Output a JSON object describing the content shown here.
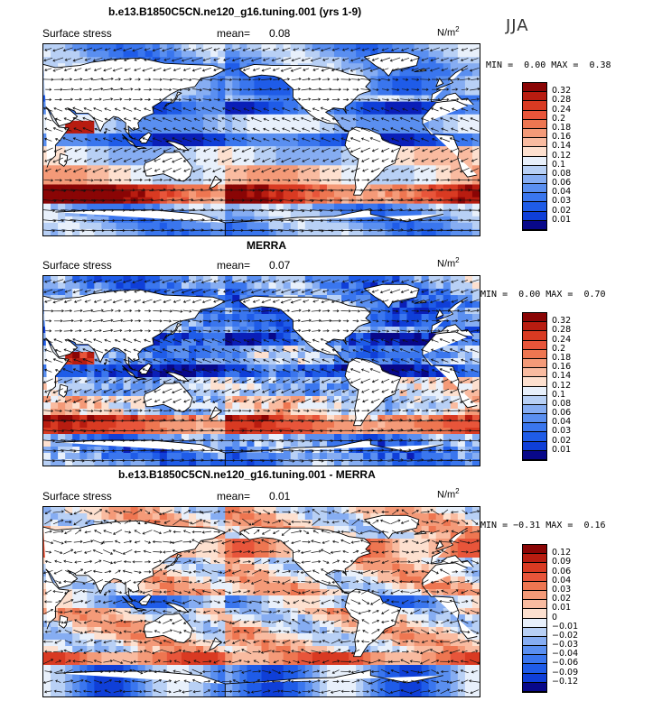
{
  "season": "JJA",
  "unit_base": "N/m",
  "unit_exp": "2",
  "colors": {
    "seq": [
      "#08088a",
      "#0a1fb8",
      "#0f3fd8",
      "#1f5ce8",
      "#3a76ee",
      "#5a8ff0",
      "#86adf2",
      "#b8d0f5",
      "#e8f0fb",
      "#fde0cf",
      "#f9bba0",
      "#f49a78",
      "#ee7651",
      "#e8553a",
      "#d93a22",
      "#b81c10",
      "#8a0505"
    ],
    "land": "#ffffff",
    "arrow": "#111111"
  },
  "panels": [
    {
      "title": "b.e13.B1850C5CN.ne120_g16.tuning.001 (yrs 1-9)",
      "variable": "Surface stress",
      "mean_label": "mean=",
      "mean": "0.08",
      "min_label": "MIN =",
      "min": "0.00",
      "max_label": "MAX =",
      "max": "0.38",
      "levels": [
        "0.32",
        "0.28",
        "0.24",
        "0.2",
        "0.18",
        "0.16",
        "0.14",
        "0.12",
        "0.1",
        "0.08",
        "0.06",
        "0.04",
        "0.03",
        "0.02",
        "0.01"
      ],
      "kind": "model"
    },
    {
      "title": "MERRA",
      "variable": "Surface stress",
      "mean_label": "mean=",
      "mean": "0.07",
      "min_label": "MIN =",
      "min": "0.00",
      "max_label": "MAX =",
      "max": "0.70",
      "levels": [
        "0.32",
        "0.28",
        "0.24",
        "0.2",
        "0.18",
        "0.16",
        "0.14",
        "0.12",
        "0.1",
        "0.08",
        "0.06",
        "0.04",
        "0.03",
        "0.02",
        "0.01"
      ],
      "kind": "obs"
    },
    {
      "title": "b.e13.B1850C5CN.ne120_g16.tuning.001 - MERRA",
      "variable": "Surface stress",
      "mean_label": "mean=",
      "mean": "0.01",
      "min_label": "MIN =",
      "min": "−0.31",
      "max_label": "MAX =",
      "max": "0.16",
      "levels": [
        "0.12",
        "0.09",
        "0.06",
        "0.04",
        "0.03",
        "0.02",
        "0.01",
        "0",
        "−0.01",
        "−0.02",
        "−0.03",
        "−0.04",
        "−0.06",
        "−0.09",
        "−0.12"
      ],
      "kind": "diff"
    }
  ]
}
